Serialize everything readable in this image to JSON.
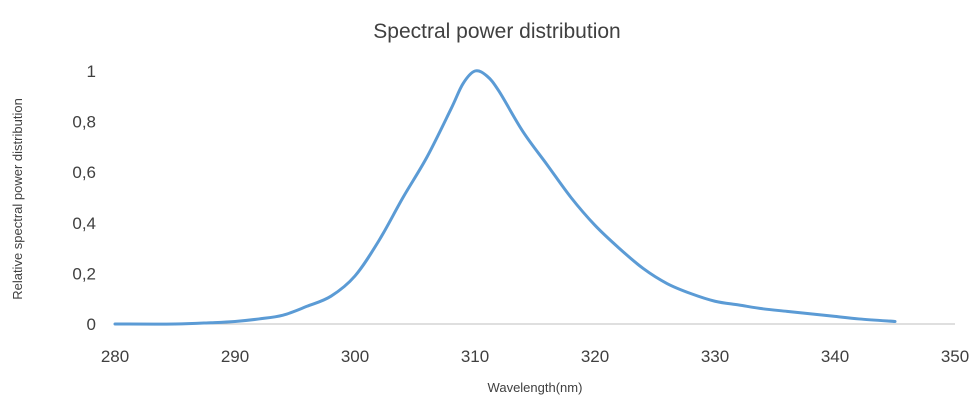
{
  "chart_data": {
    "type": "line",
    "title": "Spectral power distribution",
    "xlabel": "Wavelength(nm)",
    "ylabel": "Relative spectral power distribution",
    "xlim": [
      280,
      350
    ],
    "ylim": [
      0,
      1
    ],
    "x_ticks": [
      "280",
      "290",
      "300",
      "310",
      "320",
      "330",
      "340",
      "350"
    ],
    "y_ticks": [
      "0",
      "0,2",
      "0,4",
      "0,6",
      "0,8",
      "1"
    ],
    "grid": false,
    "legend": "none",
    "line_color": "#5B9BD5",
    "series": [
      {
        "x": [
          280,
          285,
          288,
          290,
          292,
          294,
          296,
          298,
          300,
          302,
          304,
          306,
          308,
          309,
          310,
          311,
          312,
          314,
          316,
          318,
          320,
          322,
          324,
          326,
          328,
          330,
          332,
          334,
          336,
          338,
          340,
          342,
          345
        ],
        "y": [
          0,
          0,
          0.005,
          0.01,
          0.02,
          0.035,
          0.07,
          0.11,
          0.19,
          0.33,
          0.5,
          0.66,
          0.85,
          0.95,
          1.0,
          0.98,
          0.92,
          0.76,
          0.63,
          0.5,
          0.39,
          0.3,
          0.22,
          0.16,
          0.12,
          0.09,
          0.075,
          0.06,
          0.05,
          0.04,
          0.03,
          0.02,
          0.01
        ]
      }
    ]
  }
}
